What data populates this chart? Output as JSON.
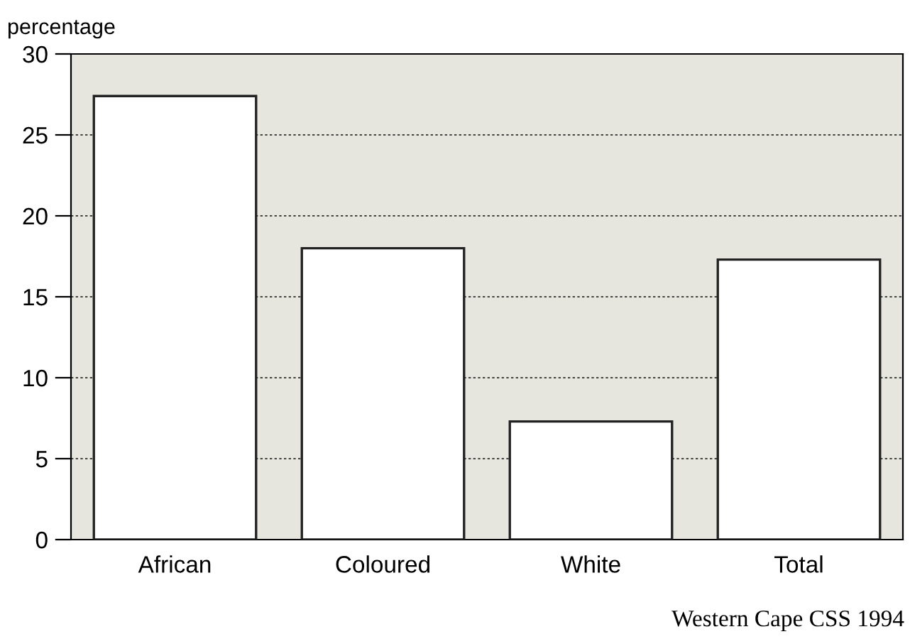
{
  "chart_data": {
    "type": "bar",
    "ylabel": "percentage",
    "categories": [
      "African",
      "Coloured",
      "White",
      "Total"
    ],
    "values": [
      27.4,
      18.0,
      7.3,
      17.3
    ],
    "color": "#ffffff",
    "ylim": [
      0,
      30
    ],
    "yticks": [
      0,
      5,
      10,
      15,
      20,
      25,
      30
    ],
    "grid": "y",
    "annotations": [
      "Western Cape CSS 1994"
    ]
  }
}
